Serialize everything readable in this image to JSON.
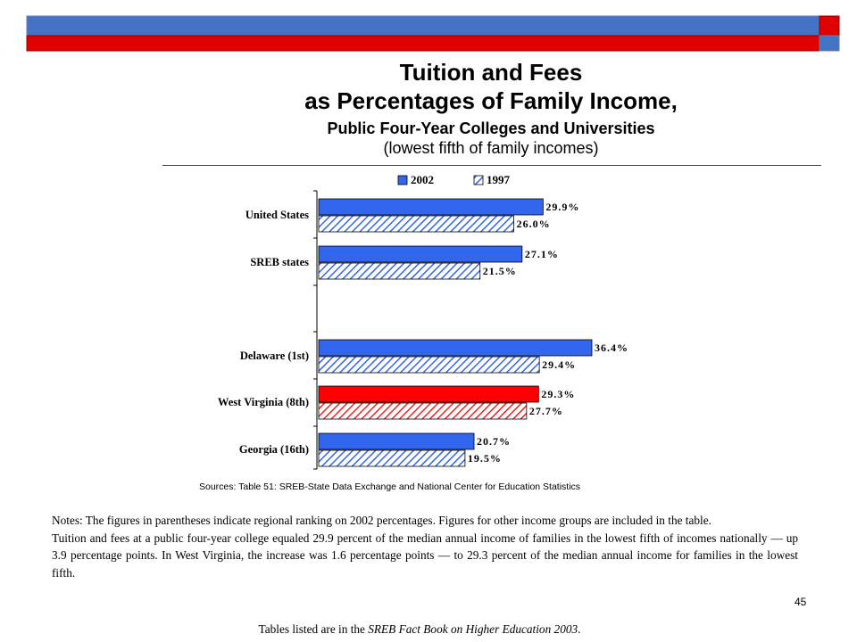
{
  "slide": {
    "title_line1": "Tuition and Fees",
    "title_line2": "as Percentages of Family Income,",
    "title_line3": "Public Four-Year Colleges and Universities",
    "title_line4": "(lowest fifth of family incomes)",
    "sources": "Sources: Table 51: SREB-State Data Exchange and National Center for Education Statistics",
    "notes_para1": "Notes: The figures in parentheses indicate regional ranking on 2002 percentages. Figures for other income groups are included in the table.",
    "notes_para2": "Tuition and fees at a public four-year college equaled 29.9 percent of the median annual income of families in the lowest fifth of incomes nationally — up 3.9 percentage points. In West Virginia, the increase was 1.6 percentage points — to 29.3 percent of the median annual income for families in the lowest fifth.",
    "page_number": "45",
    "footer_prefix": "Tables listed are in the ",
    "footer_book": "SREB Fact Book on Higher Education 2003",
    "footer_suffix": "."
  },
  "colors": {
    "banner_blue": "#4472C4",
    "banner_red": "#E00000",
    "bar_blue": "#3366EE",
    "bar_red": "#FF0000",
    "hatch_blue": "#3366EE",
    "hatch_red": "#EE2222"
  },
  "chart_data": {
    "type": "bar",
    "orientation": "horizontal",
    "categories": [
      "United States",
      "SREB states",
      "Delaware (1st)",
      "West Virginia (8th)",
      "Georgia (16th)"
    ],
    "series": [
      {
        "name": "2002",
        "values": [
          29.9,
          27.1,
          36.4,
          29.3,
          20.7
        ],
        "labels": [
          "29.9%",
          "27.1%",
          "36.4%",
          "29.3%",
          "20.7%"
        ]
      },
      {
        "name": "1997",
        "values": [
          26.0,
          21.5,
          29.4,
          27.7,
          19.5
        ],
        "labels": [
          "26.0%",
          "21.5%",
          "29.4%",
          "27.7%",
          "19.5%"
        ]
      }
    ],
    "highlight_category": "West Virginia (8th)",
    "xlim": [
      0,
      38
    ],
    "legend_position": "top",
    "grid": false
  }
}
